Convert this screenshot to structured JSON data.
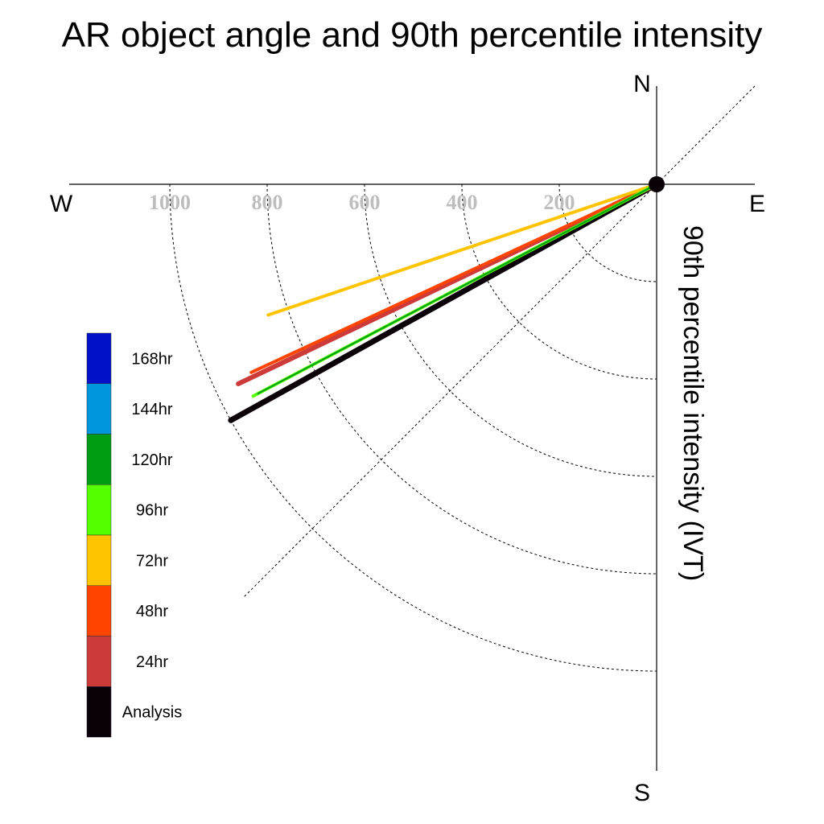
{
  "chart_data": {
    "type": "polar-vector",
    "title": "AR object angle and 90th percentile intensity",
    "radial_label": "90th percentile intensity (IVT)",
    "directions": {
      "north": "N",
      "south": "S",
      "east": "E",
      "west": "W"
    },
    "radial_ticks": [
      200,
      400,
      600,
      800,
      1000
    ],
    "radial_tick_labels": [
      "200",
      "400",
      "600",
      "800",
      "1000"
    ],
    "rmax": 1200,
    "angle_units": "degrees counter-clockwise from West",
    "series": [
      {
        "name": "Analysis",
        "angle": 29.0,
        "intensity": 1000,
        "color": "#0a0008",
        "width": 7
      },
      {
        "name": "24hr",
        "angle": 25.5,
        "intensity": 952,
        "color": "#cc3a3a",
        "width": 6
      },
      {
        "name": "48hr",
        "angle": 24.9,
        "intensity": 918,
        "color": "#ff4400",
        "width": 4
      },
      {
        "name": "72hr",
        "angle": 18.6,
        "intensity": 842,
        "color": "#ffc400",
        "width": 4
      },
      {
        "name": "96hr",
        "angle": 27.7,
        "intensity": 936,
        "color": "#55ff00",
        "width": 4
      },
      {
        "name": "120hr",
        "angle": 27.7,
        "intensity": 925,
        "color": "#009c14",
        "width": 2
      }
    ],
    "legend": [
      {
        "label": "168hr",
        "color": "#0011c8"
      },
      {
        "label": "144hr",
        "color": "#0096de"
      },
      {
        "label": "120hr",
        "color": "#009c14"
      },
      {
        "label": "96hr",
        "color": "#55ff00"
      },
      {
        "label": "72hr",
        "color": "#ffc400"
      },
      {
        "label": "48hr",
        "color": "#ff4400"
      },
      {
        "label": "24hr",
        "color": "#cc3a3a"
      },
      {
        "label": "Analysis",
        "color": "#0a0008"
      }
    ],
    "grid": true,
    "legend_position": "left"
  }
}
